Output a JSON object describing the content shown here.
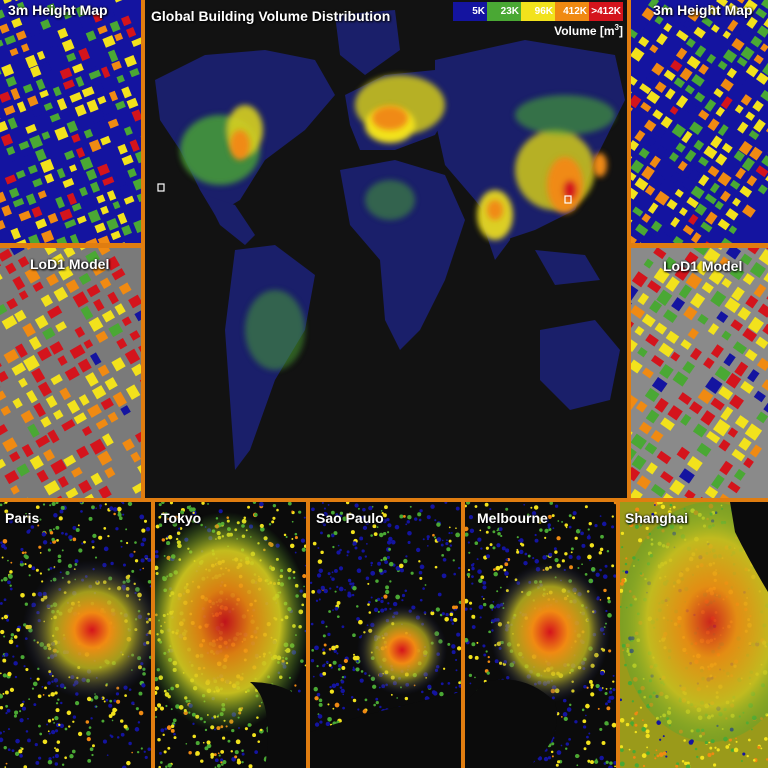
{
  "main": {
    "title": "Global Building Volume Distribution",
    "legend": {
      "title_prefix": "Volume [m",
      "title_exponent": "3",
      "title_suffix": "]",
      "classes": [
        {
          "label": "5K",
          "color": "#1414a0"
        },
        {
          "label": "23K",
          "color": "#4aa834"
        },
        {
          "label": "96K",
          "color": "#f2e21c"
        },
        {
          "label": "412K",
          "color": "#f08a12"
        },
        {
          "label": ">412K",
          "color": "#d4141c"
        }
      ]
    }
  },
  "left_panels": {
    "height_map": "3m Height Map",
    "lod1": "LoD1 Model"
  },
  "right_panels": {
    "height_map": "3m Height Map",
    "lod1": "LoD1 Model"
  },
  "cities": [
    "Paris",
    "Tokyo",
    "Sao Paulo",
    "Melbourne",
    "Shanghai"
  ],
  "colors": {
    "frame": "#e07d10",
    "background": "#0b0b0b",
    "land_low": "#1a1f6a"
  }
}
